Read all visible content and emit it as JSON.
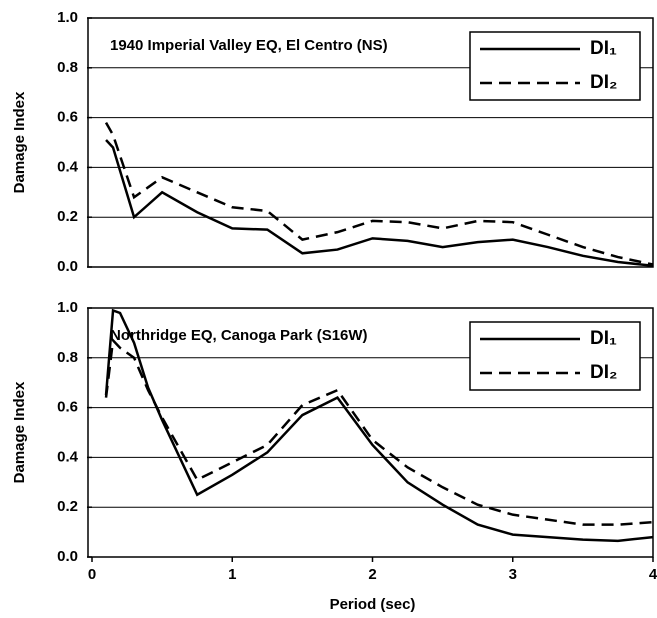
{
  "chart_data": [
    {
      "type": "line",
      "title": "1940 Imperial Valley EQ, El Centro (NS)",
      "ylabel": "Damage Index",
      "x": [
        0.1,
        0.15,
        0.3,
        0.4,
        0.5,
        0.75,
        1.0,
        1.25,
        1.5,
        1.75,
        2.0,
        2.25,
        2.5,
        2.75,
        3.0,
        3.25,
        3.5,
        3.75,
        4.0
      ],
      "series": [
        {
          "name": "DI₁",
          "color": "#000000",
          "linestyle": "solid",
          "values": [
            0.51,
            0.48,
            0.2,
            0.25,
            0.3,
            0.22,
            0.155,
            0.15,
            0.055,
            0.07,
            0.115,
            0.105,
            0.08,
            0.1,
            0.11,
            0.08,
            0.045,
            0.02,
            0.005
          ]
        },
        {
          "name": "DI₂",
          "color": "#000000",
          "linestyle": "dashed",
          "values": [
            0.58,
            0.53,
            0.28,
            0.32,
            0.36,
            0.3,
            0.24,
            0.225,
            0.11,
            0.14,
            0.185,
            0.18,
            0.155,
            0.185,
            0.18,
            0.13,
            0.08,
            0.04,
            0.01
          ]
        }
      ],
      "xlim": [
        0,
        4
      ],
      "ylim": [
        0,
        1
      ],
      "yticks": [
        {
          "value": 0,
          "label": "0.0"
        },
        {
          "value": 0.2,
          "label": "0.2"
        },
        {
          "value": 0.4,
          "label": "0.4"
        },
        {
          "value": 0.6,
          "label": "0.6"
        },
        {
          "value": 0.8,
          "label": "0.8"
        },
        {
          "value": 1,
          "label": "1.0"
        }
      ],
      "grid": true,
      "legend": "upper right"
    },
    {
      "type": "line",
      "title": "Northridge EQ, Canoga Park (S16W)",
      "ylabel": "Damage Index",
      "xlabel": "Period (sec)",
      "x": [
        0.1,
        0.15,
        0.2,
        0.3,
        0.4,
        0.5,
        0.75,
        1.0,
        1.25,
        1.5,
        1.75,
        2.0,
        2.25,
        2.5,
        2.75,
        3.0,
        3.25,
        3.5,
        3.75,
        4.0
      ],
      "series": [
        {
          "name": "DI₁",
          "color": "#000000",
          "linestyle": "solid",
          "values": [
            0.65,
            0.99,
            0.98,
            0.86,
            0.68,
            0.55,
            0.25,
            0.33,
            0.42,
            0.57,
            0.64,
            0.45,
            0.3,
            0.21,
            0.13,
            0.09,
            0.08,
            0.07,
            0.065,
            0.08
          ]
        },
        {
          "name": "DI₂",
          "color": "#000000",
          "linestyle": "dashed",
          "values": [
            0.64,
            0.87,
            0.84,
            0.8,
            0.67,
            0.56,
            0.31,
            0.38,
            0.45,
            0.61,
            0.67,
            0.47,
            0.36,
            0.28,
            0.21,
            0.17,
            0.15,
            0.13,
            0.13,
            0.14
          ]
        }
      ],
      "xlim": [
        0,
        4
      ],
      "ylim": [
        0,
        1
      ],
      "xticks": [
        0,
        1,
        2,
        3,
        4
      ],
      "yticks": [
        {
          "value": 0,
          "label": "0.0"
        },
        {
          "value": 0.2,
          "label": "0.2"
        },
        {
          "value": 0.4,
          "label": "0.4"
        },
        {
          "value": 0.6,
          "label": "0.6"
        },
        {
          "value": 0.8,
          "label": "0.8"
        },
        {
          "value": 1,
          "label": "1.0"
        }
      ],
      "grid": true,
      "legend": "upper right"
    }
  ]
}
